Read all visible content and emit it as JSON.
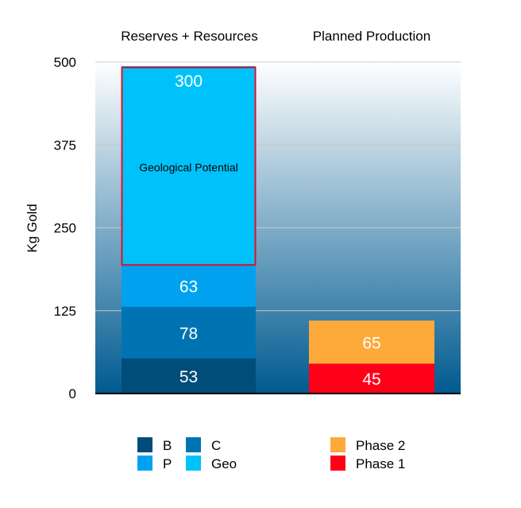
{
  "chart_data": {
    "type": "bar",
    "stacked": true,
    "categories": [
      "Reserves + Resources",
      "Planned Production"
    ],
    "ylabel": "Kg Gold",
    "ylim": [
      0,
      500
    ],
    "yticks": [
      0,
      125,
      250,
      375,
      500
    ],
    "grid": true,
    "legend_position": "bottom",
    "series": [
      {
        "name": "B",
        "color": "#004d7a",
        "values": [
          53,
          null
        ]
      },
      {
        "name": "C",
        "color": "#0074b3",
        "values": [
          78,
          null
        ]
      },
      {
        "name": "P",
        "color": "#00a2f0",
        "values": [
          63,
          null
        ]
      },
      {
        "name": "Geo",
        "color": "#00c2fa",
        "values": [
          300,
          null
        ]
      },
      {
        "name": "Phase 1",
        "color": "#ff0018",
        "values": [
          null,
          45
        ]
      },
      {
        "name": "Phase 2",
        "color": "#fdaa3a",
        "values": [
          null,
          65
        ]
      }
    ],
    "annotations": [
      {
        "text": "Geological Potential",
        "series": "Geo",
        "category": "Reserves + Resources",
        "outline_color": "#e0102a"
      }
    ],
    "background_gradient": [
      "#ffffff",
      "#005a90"
    ]
  }
}
